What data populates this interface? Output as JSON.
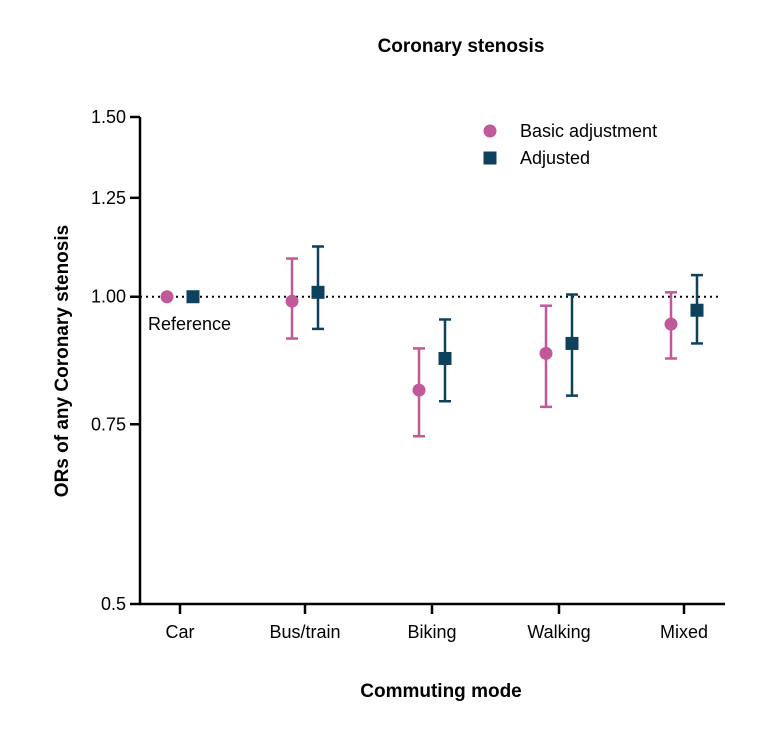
{
  "chart_data": {
    "type": "scatter",
    "title": "Coronary stenosis",
    "xlabel": "Commuting mode",
    "ylabel": "ORs of any Coronary stenosis",
    "y_scale": "log",
    "ylim": [
      0.5,
      1.5
    ],
    "y_ticks": [
      0.5,
      0.75,
      1.0,
      1.25,
      1.5
    ],
    "y_tick_labels": [
      "0.5",
      "0.75",
      "1.00",
      "1.25",
      "1.50"
    ],
    "categories": [
      "Car",
      "Bus/train",
      "Biking",
      "Walking",
      "Mixed"
    ],
    "reference_line": 1.0,
    "reference_label": "Reference",
    "legend_position": "top-right",
    "series": [
      {
        "name": "Basic adjustment",
        "marker": "circle",
        "color": "#C0589A",
        "values": [
          1.0,
          0.99,
          0.81,
          0.88,
          0.94
        ],
        "lower": [
          null,
          0.91,
          0.73,
          0.78,
          0.87
        ],
        "upper": [
          null,
          1.09,
          0.89,
          0.98,
          1.01
        ]
      },
      {
        "name": "Adjusted",
        "marker": "square",
        "color": "#0E425C",
        "values": [
          1.0,
          1.01,
          0.87,
          0.9,
          0.97
        ],
        "lower": [
          null,
          0.93,
          0.79,
          0.8,
          0.9
        ],
        "upper": [
          null,
          1.12,
          0.95,
          1.005,
          1.05
        ]
      }
    ]
  }
}
